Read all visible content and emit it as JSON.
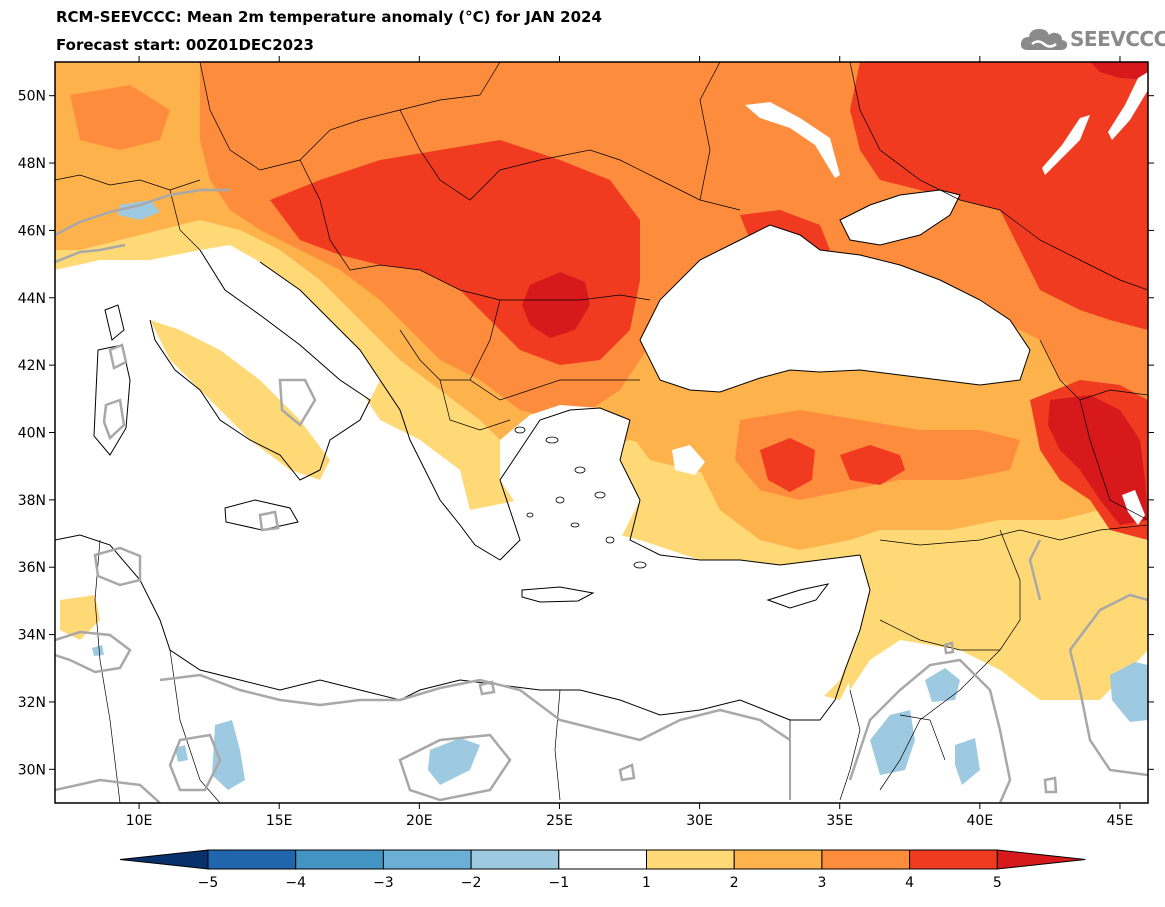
{
  "title": "RCM-SEEVCCC: Mean 2m temperature anomaly (°C) for JAN 2024",
  "subtitle": "Forecast start: 00Z01DEC2023",
  "logo": {
    "text": "SEEVCCC",
    "icon": "cloud-icon"
  },
  "map": {
    "lon_range": [
      7,
      46
    ],
    "lat_range": [
      29,
      51
    ],
    "lat_ticks": [
      {
        "value": 50,
        "label": "50N"
      },
      {
        "value": 48,
        "label": "48N"
      },
      {
        "value": 46,
        "label": "46N"
      },
      {
        "value": 44,
        "label": "44N"
      },
      {
        "value": 42,
        "label": "42N"
      },
      {
        "value": 40,
        "label": "40N"
      },
      {
        "value": 38,
        "label": "38N"
      },
      {
        "value": 36,
        "label": "36N"
      },
      {
        "value": 34,
        "label": "34N"
      },
      {
        "value": 32,
        "label": "32N"
      },
      {
        "value": 30,
        "label": "30N"
      }
    ],
    "lon_ticks": [
      {
        "value": 10,
        "label": "10E"
      },
      {
        "value": 15,
        "label": "15E"
      },
      {
        "value": 20,
        "label": "20E"
      },
      {
        "value": 25,
        "label": "25E"
      },
      {
        "value": 30,
        "label": "30E"
      },
      {
        "value": 35,
        "label": "35E"
      },
      {
        "value": 40,
        "label": "40E"
      },
      {
        "value": 45,
        "label": "45E"
      }
    ],
    "colors": {
      "b5": "#08306b",
      "b4": "#2166ac",
      "b3": "#4393c3",
      "b2": "#6baed6",
      "b1": "#9ecae1",
      "r1": "#fed976",
      "r2": "#feb24c",
      "r3": "#fd8d3c",
      "r4": "#f03b20",
      "r5": "#d7191c",
      "sea": "#ffffff",
      "contour": "#a8a8a8"
    }
  },
  "colorbar": {
    "labels": [
      "−5",
      "−4",
      "−3",
      "−2",
      "−1",
      "1",
      "2",
      "3",
      "4",
      "5"
    ],
    "colors": [
      "#08306b",
      "#2166ac",
      "#4393c3",
      "#6baed6",
      "#9ecae1",
      "#ffffff",
      "#fed976",
      "#feb24c",
      "#fd8d3c",
      "#f03b20",
      "#d7191c"
    ]
  }
}
